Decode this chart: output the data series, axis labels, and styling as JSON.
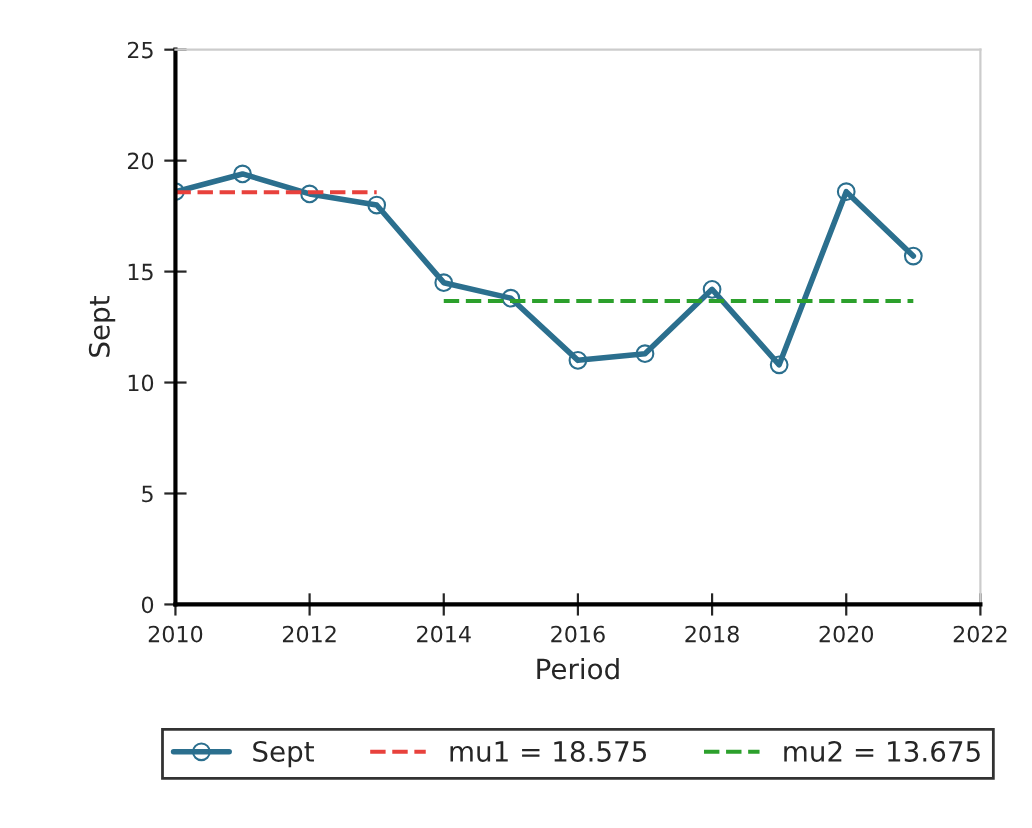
{
  "chart_data": {
    "type": "line",
    "xlabel": "Period",
    "ylabel": "Sept",
    "xlim": [
      2010,
      2022
    ],
    "xticks": [
      2010,
      2012,
      2014,
      2016,
      2018,
      2020,
      2022
    ],
    "ylim": [
      0,
      25
    ],
    "yticks": [
      0,
      5,
      10,
      15,
      20,
      25
    ],
    "grid": false,
    "legend": "bottom",
    "series": [
      {
        "name": "Sept",
        "color": "#2b6f8e",
        "marker": "circle",
        "line_style": "solid",
        "x": [
          2010,
          2011,
          2012,
          2013,
          2014,
          2015,
          2016,
          2017,
          2018,
          2019,
          2020,
          2021
        ],
        "values": [
          18.6,
          19.4,
          18.5,
          18.0,
          14.5,
          13.8,
          11.0,
          11.3,
          14.2,
          10.8,
          18.6,
          15.7
        ]
      },
      {
        "name": "mu1 = 18.575",
        "color": "#e8413c",
        "marker": "none",
        "line_style": "dashed",
        "x": [
          2010,
          2013
        ],
        "values": [
          18.575,
          18.575
        ]
      },
      {
        "name": "mu2 = 13.675",
        "color": "#2ca02c",
        "marker": "none",
        "line_style": "dashed",
        "x": [
          2014,
          2021
        ],
        "values": [
          13.675,
          13.675
        ]
      }
    ]
  }
}
